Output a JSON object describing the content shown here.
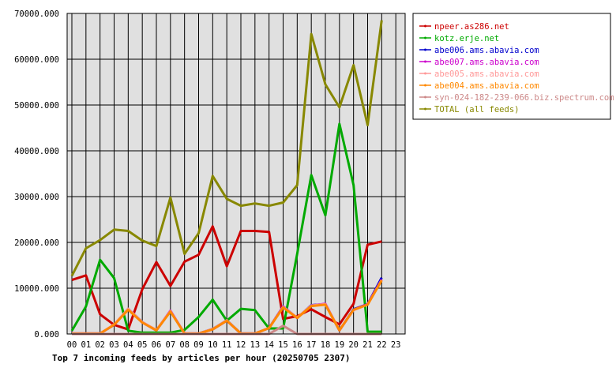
{
  "chart_data": {
    "type": "line",
    "title": "Top 7 incoming feeds by articles per hour (20250705 2307)",
    "xlabel": "",
    "ylabel": "",
    "x": [
      "00",
      "01",
      "02",
      "03",
      "04",
      "05",
      "06",
      "07",
      "08",
      "09",
      "10",
      "11",
      "12",
      "13",
      "14",
      "15",
      "16",
      "17",
      "18",
      "19",
      "20",
      "21",
      "22",
      "23"
    ],
    "ylim": [
      0,
      70000
    ],
    "y_ticks": [
      "0.000",
      "10000.000",
      "20000.000",
      "30000.000",
      "40000.000",
      "50000.000",
      "60000.000",
      "70000.000"
    ],
    "grid": true,
    "legend_position": "right",
    "series": [
      {
        "name": "npeer.as286.net",
        "color": "#cc0000",
        "values": [
          11800,
          12800,
          4300,
          2000,
          1000,
          9800,
          15700,
          10500,
          15800,
          17300,
          23500,
          14800,
          22500,
          22500,
          22300,
          3300,
          3900,
          5400,
          3700,
          2100,
          6600,
          19500,
          20200,
          null
        ]
      },
      {
        "name": "kotz.erje.net",
        "color": "#00aa00",
        "values": [
          700,
          6000,
          16200,
          12200,
          700,
          300,
          300,
          300,
          900,
          3700,
          7500,
          2900,
          5500,
          5200,
          1200,
          1200,
          17500,
          34700,
          25900,
          45900,
          32500,
          500,
          500,
          null
        ]
      },
      {
        "name": "abe006.ams.abavia.com",
        "color": "#0000cc",
        "values": [
          100,
          100,
          100,
          2000,
          5500,
          2600,
          800,
          5000,
          100,
          100,
          1100,
          3000,
          100,
          100,
          1300,
          6000,
          3500,
          6300,
          6500,
          800,
          5400,
          6500,
          12300,
          null
        ]
      },
      {
        "name": "abe007.ams.abavia.com",
        "color": "#cc00cc",
        "values": [
          100,
          100,
          100,
          2000,
          5400,
          2500,
          800,
          5100,
          100,
          100,
          1000,
          2900,
          100,
          100,
          1300,
          6000,
          3500,
          6200,
          6600,
          800,
          5300,
          6500,
          11900,
          null
        ]
      },
      {
        "name": "abe005.ams.abavia.com",
        "color": "#ff9999",
        "values": [
          100,
          100,
          100,
          2100,
          5500,
          2600,
          900,
          5000,
          100,
          100,
          1100,
          3000,
          100,
          100,
          1300,
          5900,
          3600,
          6200,
          6500,
          900,
          5200,
          6400,
          11800,
          null
        ]
      },
      {
        "name": "abe004.ams.abavia.com",
        "color": "#ff8800",
        "values": [
          100,
          100,
          100,
          2000,
          5300,
          2500,
          800,
          4900,
          100,
          100,
          1000,
          2900,
          100,
          100,
          1300,
          5800,
          3500,
          6100,
          6400,
          800,
          5300,
          6400,
          11700,
          null
        ]
      },
      {
        "name": "syn-024-182-239-066.biz.spectrum.com",
        "color": "#cc8888",
        "values": [
          0,
          0,
          0,
          0,
          0,
          0,
          0,
          0,
          0,
          0,
          0,
          0,
          0,
          0,
          0,
          1800,
          0,
          0,
          0,
          0,
          0,
          0,
          0,
          null
        ]
      },
      {
        "name": "TOTAL (all feeds)",
        "color": "#888800",
        "values": [
          12700,
          18700,
          20500,
          22800,
          22500,
          20400,
          19200,
          29800,
          17500,
          22000,
          34500,
          29500,
          28000,
          28500,
          28000,
          28700,
          32500,
          65500,
          54500,
          49500,
          58700,
          45600,
          68500,
          null
        ]
      }
    ]
  }
}
